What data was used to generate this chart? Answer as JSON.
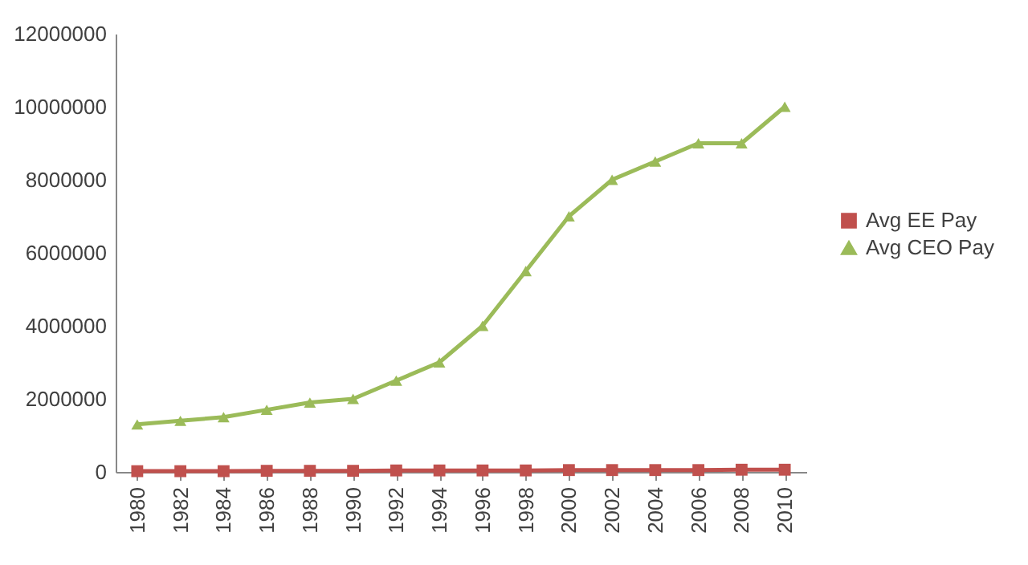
{
  "chart_data": {
    "type": "line",
    "categories": [
      "1980",
      "1982",
      "1984",
      "1986",
      "1988",
      "1990",
      "1992",
      "1994",
      "1996",
      "1998",
      "2000",
      "2002",
      "2004",
      "2006",
      "2008",
      "2010"
    ],
    "series": [
      {
        "name": "Avg EE Pay",
        "color": "#c0504d",
        "marker": "square",
        "values": [
          20000,
          20000,
          20000,
          30000,
          30000,
          30000,
          40000,
          40000,
          40000,
          40000,
          50000,
          50000,
          50000,
          50000,
          60000,
          60000
        ]
      },
      {
        "name": "Avg CEO Pay",
        "color": "#9bbb59",
        "marker": "triangle",
        "values": [
          1300000,
          1400000,
          1500000,
          1700000,
          1900000,
          2000000,
          2500000,
          3000000,
          4000000,
          5500000,
          7000000,
          8000000,
          8500000,
          9000000,
          9000000,
          10000000
        ]
      }
    ],
    "ylim": [
      0,
      12000000
    ],
    "yticks": [
      0,
      2000000,
      4000000,
      6000000,
      8000000,
      10000000,
      12000000
    ],
    "legend": "right",
    "grid": false
  }
}
